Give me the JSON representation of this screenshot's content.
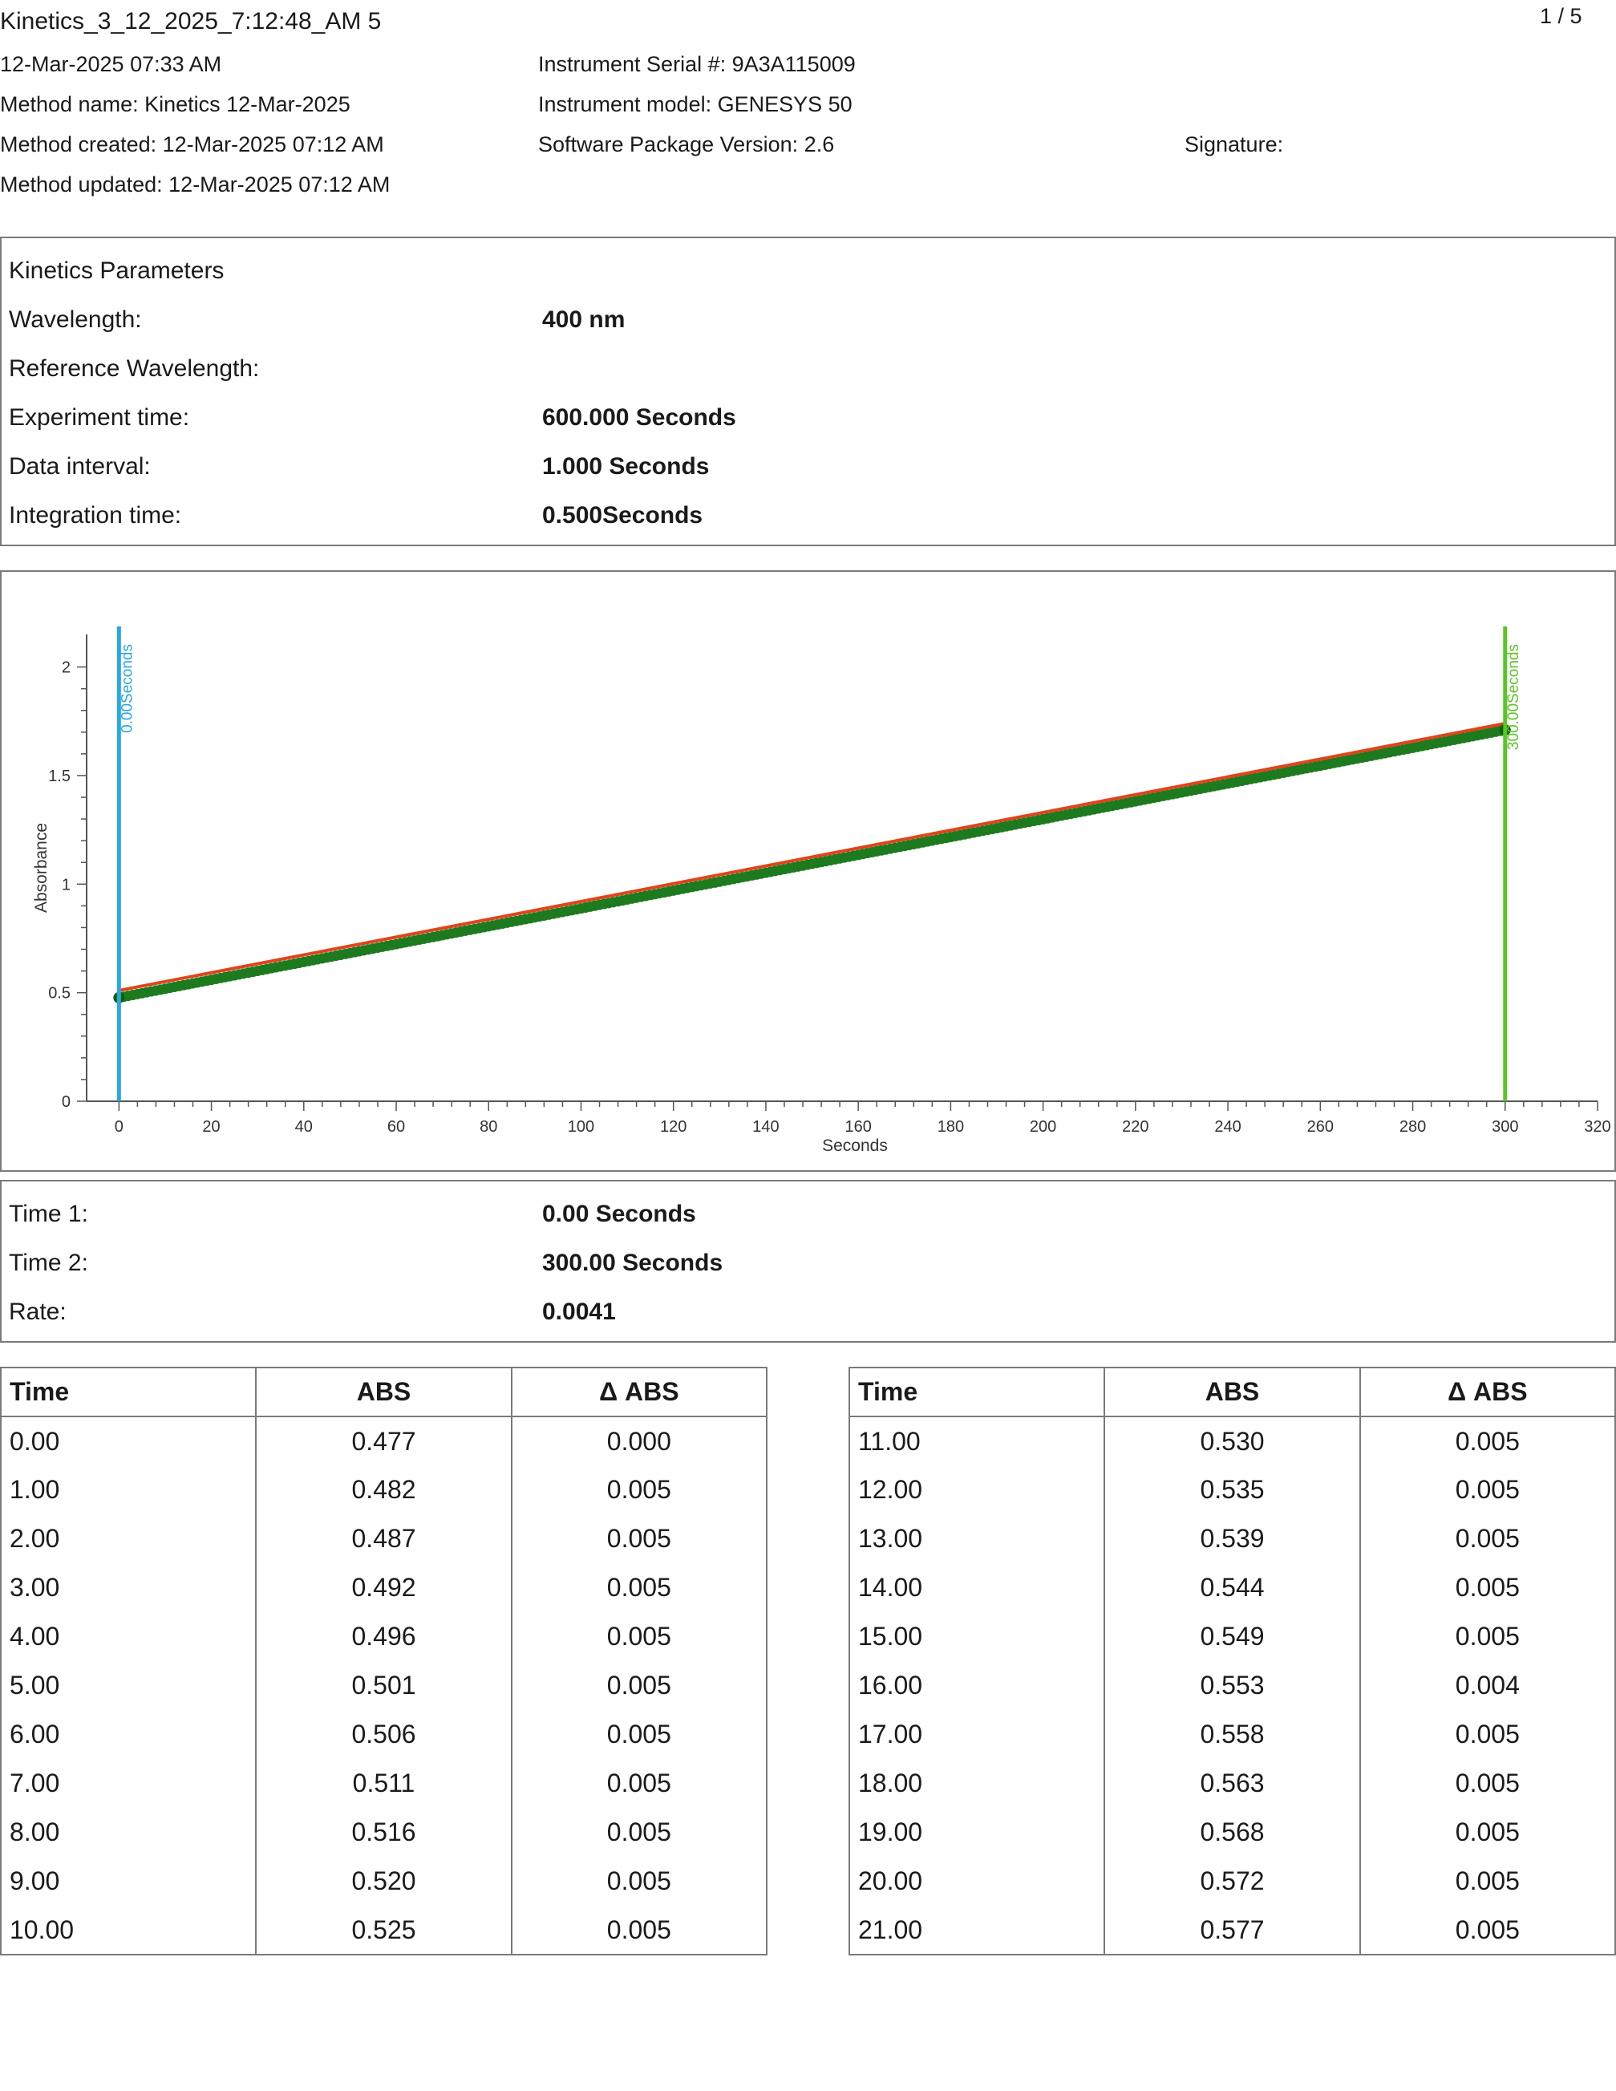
{
  "header": {
    "title": "Kinetics_3_12_2025_7:12:48_AM 5",
    "page": "1 / 5",
    "datetime": "12-Mar-2025 07:33 AM",
    "method_name": "Method name: Kinetics 12-Mar-2025",
    "method_created": "Method created: 12-Mar-2025 07:12 AM",
    "method_updated": "Method updated: 12-Mar-2025 07:12 AM",
    "serial": "Instrument Serial #: 9A3A115009",
    "model": "Instrument model: GENESYS 50",
    "software": "Software Package Version: 2.6",
    "signature": "Signature:"
  },
  "params": {
    "heading": "Kinetics Parameters",
    "rows": [
      {
        "label": "Wavelength:",
        "value": "400 nm"
      },
      {
        "label": "Reference Wavelength:",
        "value": ""
      },
      {
        "label": "Experiment time:",
        "value": "600.000 Seconds"
      },
      {
        "label": "Data interval:",
        "value": "1.000 Seconds"
      },
      {
        "label": "Integration time:",
        "value": "0.500Seconds"
      }
    ]
  },
  "chart_data": {
    "type": "scatter",
    "xlabel": "Seconds",
    "ylabel": "Absorbance",
    "xlim": [
      -7,
      320
    ],
    "ylim": [
      0,
      2.15
    ],
    "xticks": [
      0,
      20,
      40,
      60,
      80,
      100,
      120,
      140,
      160,
      180,
      200,
      220,
      240,
      260,
      280,
      300,
      320
    ],
    "yticks": [
      0,
      0.5,
      1,
      1.5,
      2
    ],
    "ytick_labels": [
      "0",
      "0.5",
      "1",
      "1.5",
      "2"
    ],
    "series": [
      {
        "kind": "points",
        "color": "#1e7a1e",
        "x_start": 0,
        "x_end": 300,
        "y_start": 0.477,
        "y_end": 1.71
      }
    ],
    "fit_line": {
      "color": "#e0441c",
      "x": [
        0,
        300
      ],
      "y": [
        0.51,
        1.74
      ]
    },
    "markers": [
      {
        "x": 0,
        "label": "0.00Seconds",
        "color": "#29a8e0"
      },
      {
        "x": 300,
        "label": "300.00Seconds",
        "color": "#5cc42a"
      }
    ],
    "grid": false
  },
  "results": {
    "rows": [
      {
        "label": "Time 1:",
        "value": "0.00 Seconds"
      },
      {
        "label": "Time 2:",
        "value": "300.00 Seconds"
      },
      {
        "label": "Rate:",
        "value": "0.0041"
      }
    ]
  },
  "tables": {
    "headers": [
      "Time",
      "ABS",
      "Δ ABS"
    ],
    "left": [
      [
        "0.00",
        "0.477",
        "0.000"
      ],
      [
        "1.00",
        "0.482",
        "0.005"
      ],
      [
        "2.00",
        "0.487",
        "0.005"
      ],
      [
        "3.00",
        "0.492",
        "0.005"
      ],
      [
        "4.00",
        "0.496",
        "0.005"
      ],
      [
        "5.00",
        "0.501",
        "0.005"
      ],
      [
        "6.00",
        "0.506",
        "0.005"
      ],
      [
        "7.00",
        "0.511",
        "0.005"
      ],
      [
        "8.00",
        "0.516",
        "0.005"
      ],
      [
        "9.00",
        "0.520",
        "0.005"
      ],
      [
        "10.00",
        "0.525",
        "0.005"
      ]
    ],
    "right": [
      [
        "11.00",
        "0.530",
        "0.005"
      ],
      [
        "12.00",
        "0.535",
        "0.005"
      ],
      [
        "13.00",
        "0.539",
        "0.005"
      ],
      [
        "14.00",
        "0.544",
        "0.005"
      ],
      [
        "15.00",
        "0.549",
        "0.005"
      ],
      [
        "16.00",
        "0.553",
        "0.004"
      ],
      [
        "17.00",
        "0.558",
        "0.005"
      ],
      [
        "18.00",
        "0.563",
        "0.005"
      ],
      [
        "19.00",
        "0.568",
        "0.005"
      ],
      [
        "20.00",
        "0.572",
        "0.005"
      ],
      [
        "21.00",
        "0.577",
        "0.005"
      ]
    ]
  }
}
